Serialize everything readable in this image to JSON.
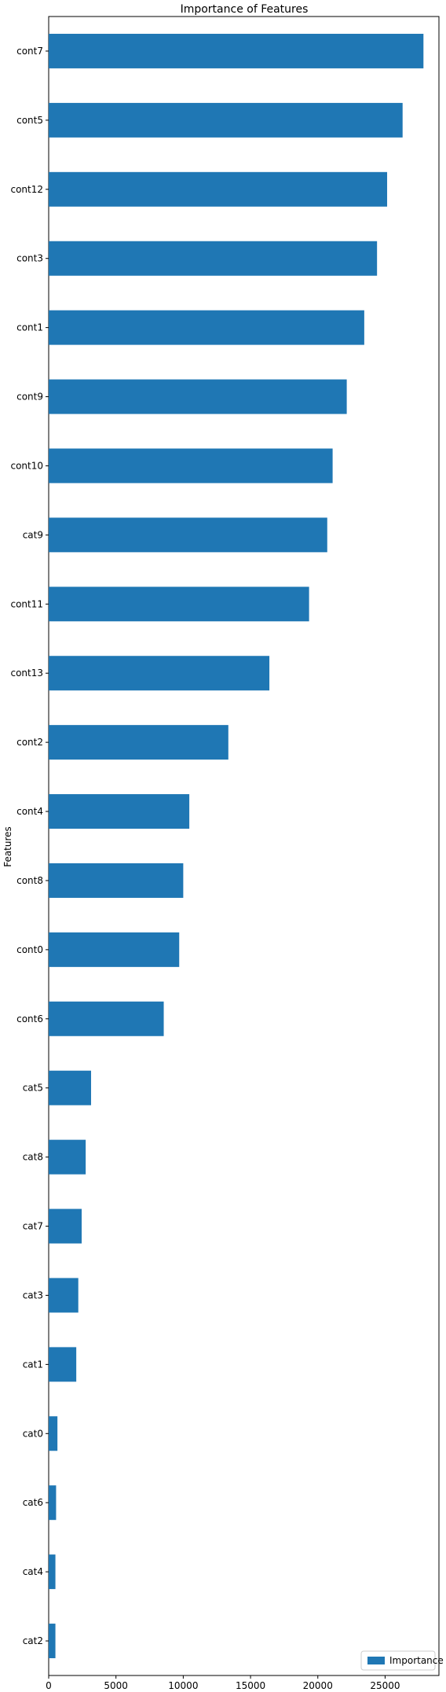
{
  "chart_data": {
    "type": "bar",
    "orientation": "horizontal",
    "title": "Importance of Features",
    "xlabel": "",
    "ylabel": "Features",
    "xlim": [
      0,
      29000
    ],
    "xticks": [
      0,
      5000,
      10000,
      15000,
      20000,
      25000
    ],
    "grid": false,
    "legend_position": "bottom-right",
    "bar_color": "#1f77b4",
    "series": [
      {
        "name": "Importance",
        "color": "#1f77b4",
        "categories": [
          "cont7",
          "cont5",
          "cont12",
          "cont3",
          "cont1",
          "cont9",
          "cont10",
          "cat9",
          "cont11",
          "cont13",
          "cont2",
          "cont4",
          "cont8",
          "cont0",
          "cont6",
          "cat5",
          "cat8",
          "cat7",
          "cat3",
          "cat1",
          "cat0",
          "cat6",
          "cat4",
          "cat2"
        ],
        "values": [
          27850,
          26300,
          25150,
          24400,
          23450,
          22150,
          21100,
          20700,
          19350,
          16400,
          13350,
          10450,
          10000,
          9700,
          8550,
          3150,
          2750,
          2450,
          2200,
          2050,
          650,
          550,
          500,
          500
        ]
      }
    ]
  }
}
